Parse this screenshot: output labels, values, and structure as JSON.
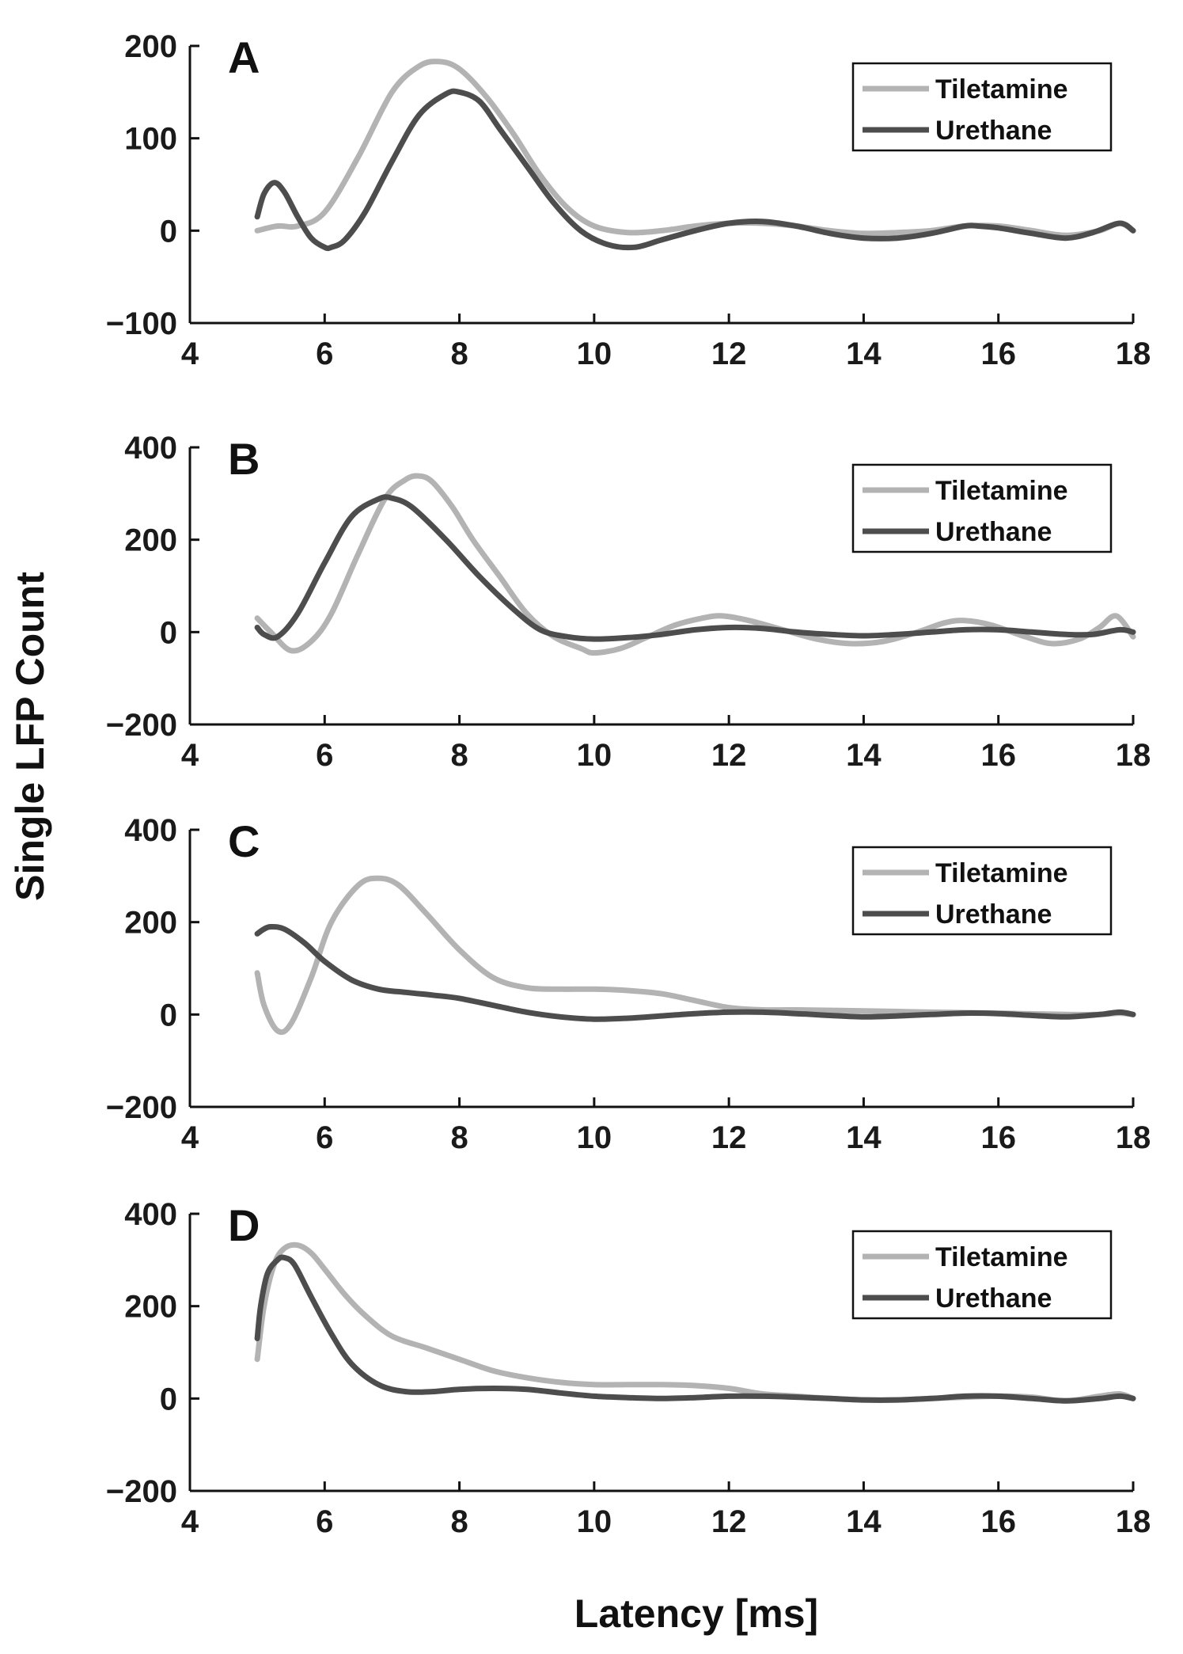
{
  "chart_data": [
    {
      "type": "line",
      "panel_label": "A",
      "xlim": [
        4,
        18
      ],
      "ylim": [
        -100,
        200
      ],
      "xticks": [
        "4",
        "6",
        "8",
        "10",
        "12",
        "14",
        "16",
        "18"
      ],
      "yticks": [
        "200",
        "100",
        "0",
        "−100"
      ],
      "legend_position": "top-right",
      "series": [
        {
          "name": "Tiletamine",
          "color": "#b3b3b3",
          "x": [
            5.0,
            5.3,
            5.6,
            6.0,
            6.5,
            7.0,
            7.4,
            7.7,
            8.0,
            8.4,
            8.8,
            9.2,
            9.6,
            10.0,
            10.5,
            11.0,
            11.5,
            12.0,
            12.5,
            13.0,
            13.5,
            14.0,
            14.5,
            15.0,
            15.5,
            16.0,
            16.5,
            17.0,
            17.5,
            17.8,
            18.0
          ],
          "y": [
            0,
            5,
            5,
            20,
            80,
            150,
            178,
            183,
            175,
            145,
            105,
            60,
            25,
            5,
            -2,
            0,
            5,
            8,
            8,
            5,
            0,
            -3,
            -2,
            0,
            5,
            5,
            0,
            -5,
            0,
            8,
            0
          ]
        },
        {
          "name": "Urethane",
          "color": "#4d4d4d",
          "x": [
            5.0,
            5.1,
            5.25,
            5.4,
            5.6,
            5.8,
            6.0,
            6.1,
            6.3,
            6.6,
            7.0,
            7.4,
            7.8,
            8.0,
            8.3,
            8.6,
            9.0,
            9.4,
            9.8,
            10.2,
            10.6,
            11.0,
            11.5,
            12.0,
            12.5,
            13.0,
            13.5,
            14.0,
            14.5,
            15.0,
            15.5,
            15.7,
            16.0,
            16.5,
            17.0,
            17.4,
            17.8,
            18.0
          ],
          "y": [
            15,
            40,
            52,
            42,
            15,
            -8,
            -18,
            -18,
            -10,
            20,
            75,
            125,
            148,
            150,
            140,
            110,
            70,
            30,
            0,
            -15,
            -18,
            -10,
            0,
            8,
            10,
            5,
            -3,
            -8,
            -8,
            -3,
            5,
            5,
            3,
            -3,
            -8,
            -2,
            8,
            0
          ]
        }
      ]
    },
    {
      "type": "line",
      "panel_label": "B",
      "xlim": [
        4,
        18
      ],
      "ylim": [
        -200,
        400
      ],
      "xticks": [
        "4",
        "6",
        "8",
        "10",
        "12",
        "14",
        "16",
        "18"
      ],
      "yticks": [
        "400",
        "200",
        "0",
        "−200"
      ],
      "legend_position": "top-right",
      "series": [
        {
          "name": "Tiletamine",
          "color": "#b3b3b3",
          "x": [
            5.0,
            5.2,
            5.5,
            5.8,
            6.1,
            6.5,
            6.9,
            7.2,
            7.4,
            7.6,
            7.9,
            8.2,
            8.6,
            9.0,
            9.4,
            9.8,
            10.0,
            10.4,
            10.8,
            11.2,
            11.6,
            11.9,
            12.3,
            12.8,
            13.3,
            13.8,
            14.3,
            14.8,
            15.2,
            15.5,
            15.9,
            16.4,
            16.8,
            17.2,
            17.5,
            17.75,
            18.0
          ],
          "y": [
            30,
            0,
            -40,
            -20,
            40,
            170,
            290,
            330,
            338,
            325,
            270,
            200,
            120,
            40,
            -10,
            -35,
            -45,
            -35,
            -10,
            15,
            30,
            35,
            25,
            5,
            -15,
            -25,
            -20,
            0,
            20,
            25,
            15,
            -10,
            -25,
            -15,
            10,
            35,
            -10
          ]
        },
        {
          "name": "Urethane",
          "color": "#4d4d4d",
          "x": [
            5.0,
            5.1,
            5.3,
            5.6,
            6.0,
            6.4,
            6.8,
            7.0,
            7.3,
            7.8,
            8.3,
            8.8,
            9.2,
            9.6,
            10.0,
            10.5,
            11.0,
            11.5,
            12.0,
            12.5,
            13.0,
            13.5,
            14.0,
            14.5,
            15.0,
            15.5,
            16.0,
            16.5,
            17.0,
            17.4,
            17.8,
            18.0
          ],
          "y": [
            10,
            -5,
            -10,
            40,
            150,
            250,
            288,
            290,
            270,
            200,
            120,
            50,
            5,
            -10,
            -15,
            -12,
            -5,
            5,
            10,
            8,
            0,
            -5,
            -8,
            -5,
            0,
            5,
            5,
            0,
            -5,
            -5,
            5,
            0
          ]
        }
      ]
    },
    {
      "type": "line",
      "panel_label": "C",
      "xlim": [
        4,
        18
      ],
      "ylim": [
        -200,
        400
      ],
      "xticks": [
        "4",
        "6",
        "8",
        "10",
        "12",
        "14",
        "16",
        "18"
      ],
      "yticks": [
        "400",
        "200",
        "0",
        "−200"
      ],
      "legend_position": "top-right",
      "series": [
        {
          "name": "Tiletamine",
          "color": "#b3b3b3",
          "x": [
            5.0,
            5.1,
            5.3,
            5.5,
            5.8,
            6.1,
            6.5,
            6.8,
            7.1,
            7.5,
            8.0,
            8.5,
            9.0,
            9.5,
            10.0,
            10.5,
            11.0,
            11.5,
            12.0,
            12.5,
            13.0,
            14.0,
            15.0,
            16.0,
            17.0,
            17.5,
            17.8,
            18.0
          ],
          "y": [
            90,
            20,
            -35,
            -20,
            80,
            200,
            280,
            295,
            280,
            220,
            140,
            80,
            58,
            55,
            55,
            52,
            45,
            30,
            15,
            10,
            10,
            8,
            5,
            3,
            0,
            0,
            3,
            0
          ]
        },
        {
          "name": "Urethane",
          "color": "#4d4d4d",
          "x": [
            5.0,
            5.1,
            5.2,
            5.4,
            5.7,
            6.0,
            6.4,
            6.8,
            7.2,
            7.6,
            8.0,
            8.5,
            9.0,
            9.5,
            10.0,
            10.5,
            11.0,
            11.5,
            12.0,
            12.5,
            13.0,
            13.5,
            14.0,
            14.5,
            15.0,
            15.5,
            16.0,
            16.5,
            17.0,
            17.5,
            17.8,
            18.0
          ],
          "y": [
            175,
            185,
            190,
            185,
            155,
            115,
            75,
            55,
            48,
            42,
            35,
            20,
            5,
            -5,
            -10,
            -8,
            -3,
            2,
            5,
            5,
            2,
            -2,
            -5,
            -3,
            0,
            3,
            2,
            -2,
            -5,
            0,
            5,
            0
          ]
        }
      ]
    },
    {
      "type": "line",
      "panel_label": "D",
      "xlim": [
        4,
        18
      ],
      "ylim": [
        -200,
        400
      ],
      "xticks": [
        "4",
        "6",
        "8",
        "10",
        "12",
        "14",
        "16",
        "18"
      ],
      "yticks": [
        "400",
        "200",
        "0",
        "−200"
      ],
      "legend_position": "top-right",
      "series": [
        {
          "name": "Tiletamine",
          "color": "#b3b3b3",
          "x": [
            5.0,
            5.1,
            5.25,
            5.4,
            5.6,
            5.8,
            6.0,
            6.3,
            6.6,
            7.0,
            7.5,
            8.0,
            8.5,
            9.0,
            9.5,
            10.0,
            10.5,
            11.0,
            11.5,
            12.0,
            12.5,
            13.0,
            13.5,
            14.0,
            14.5,
            15.0,
            15.5,
            16.0,
            16.5,
            17.0,
            17.5,
            17.8,
            18.0
          ],
          "y": [
            85,
            200,
            290,
            325,
            332,
            315,
            280,
            225,
            180,
            135,
            110,
            85,
            60,
            45,
            35,
            30,
            30,
            30,
            28,
            22,
            10,
            5,
            0,
            -3,
            -3,
            0,
            3,
            5,
            3,
            -5,
            5,
            10,
            0
          ]
        },
        {
          "name": "Urethane",
          "color": "#4d4d4d",
          "x": [
            5.0,
            5.05,
            5.15,
            5.3,
            5.4,
            5.55,
            5.8,
            6.1,
            6.4,
            6.8,
            7.2,
            7.6,
            8.0,
            8.5,
            9.0,
            9.5,
            10.0,
            10.5,
            11.0,
            11.5,
            12.0,
            12.5,
            13.0,
            13.5,
            14.0,
            14.5,
            15.0,
            15.5,
            16.0,
            16.5,
            17.0,
            17.5,
            17.8,
            18.0
          ],
          "y": [
            130,
            200,
            270,
            300,
            305,
            290,
            220,
            140,
            75,
            30,
            15,
            15,
            20,
            22,
            20,
            12,
            5,
            2,
            0,
            2,
            5,
            5,
            3,
            0,
            -3,
            -3,
            0,
            5,
            5,
            0,
            -5,
            0,
            5,
            0
          ]
        }
      ]
    }
  ],
  "axes": {
    "xlabel": "Latency [ms]",
    "ylabel": "Single LFP Count"
  }
}
